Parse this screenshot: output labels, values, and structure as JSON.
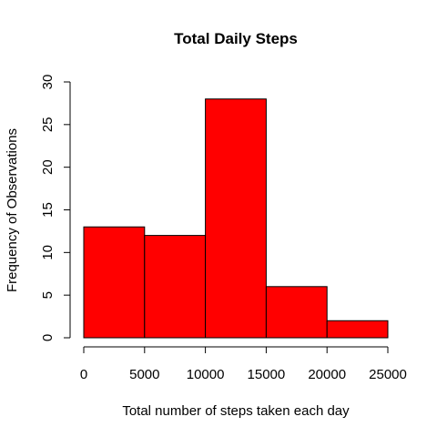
{
  "chart_data": {
    "type": "bar",
    "title": "Total Daily Steps",
    "xlabel": "Total number of steps taken each day",
    "ylabel": "Frequency of Observations",
    "bins": [
      {
        "start": 0,
        "end": 5000,
        "count": 13
      },
      {
        "start": 5000,
        "end": 10000,
        "count": 12
      },
      {
        "start": 10000,
        "end": 15000,
        "count": 28
      },
      {
        "start": 15000,
        "end": 20000,
        "count": 6
      },
      {
        "start": 20000,
        "end": 25000,
        "count": 2
      }
    ],
    "xlim": [
      0,
      25000
    ],
    "ylim": [
      0,
      30
    ],
    "x_ticks": [
      0,
      5000,
      10000,
      15000,
      20000,
      25000
    ],
    "y_ticks": [
      0,
      5,
      10,
      15,
      20,
      25,
      30
    ],
    "bar_color": "#ff0000",
    "grid": false
  }
}
